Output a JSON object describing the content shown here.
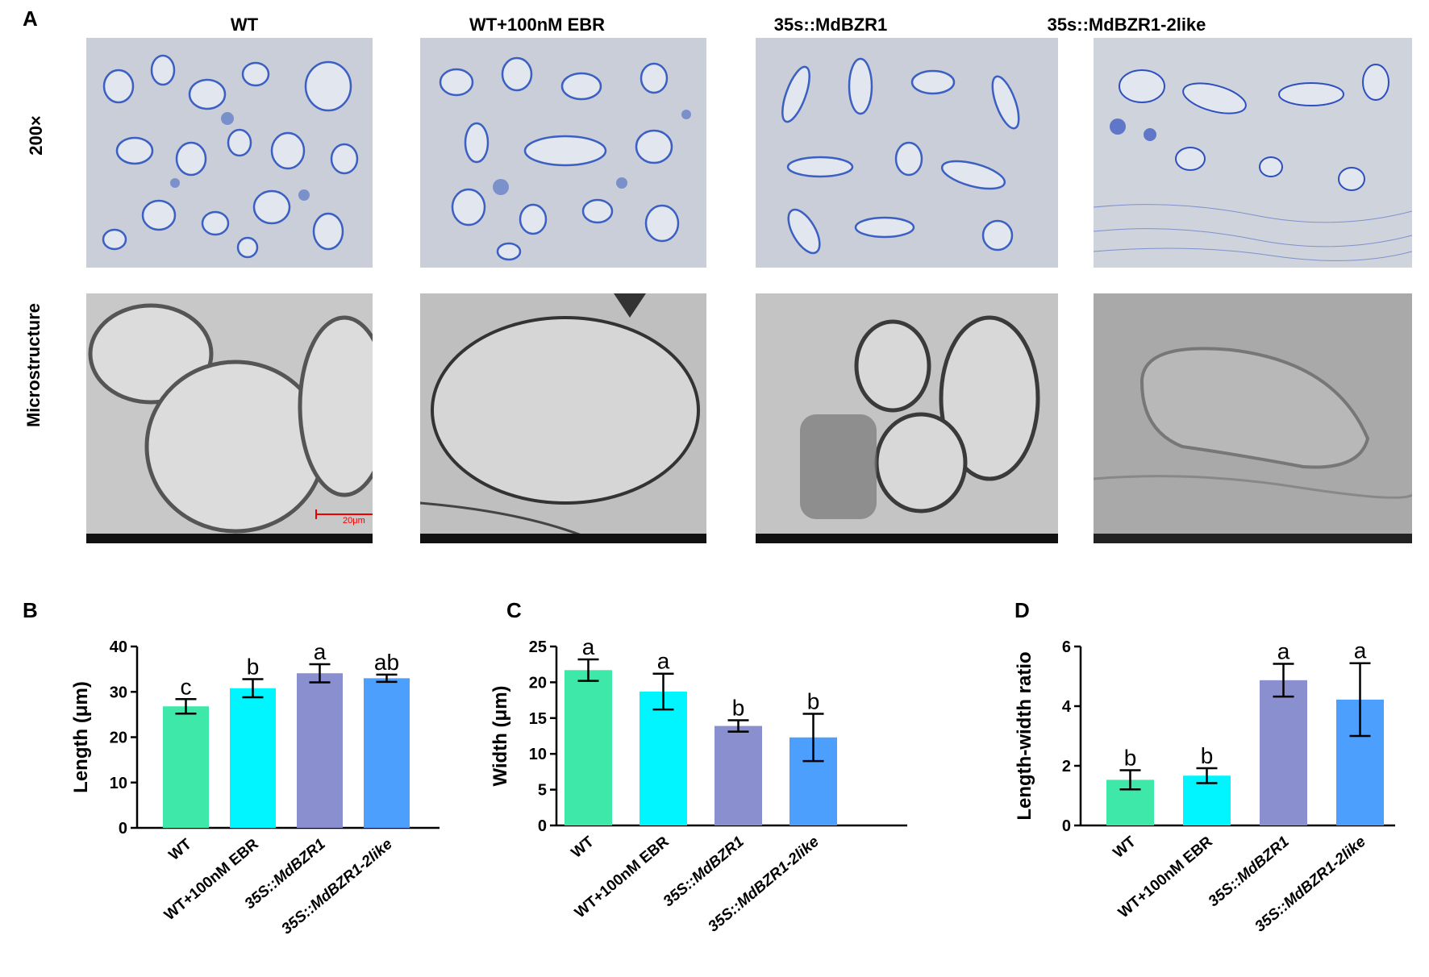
{
  "figure": {
    "panel_a": {
      "letter": "A",
      "columns": [
        "WT",
        "WT+100nM EBR",
        "35s::MdBZR1",
        "35s::MdBZR1-2like"
      ],
      "rows": [
        "200×",
        "Microstructure"
      ],
      "scale_bar_label": "20μm"
    },
    "panel_b": {
      "letter": "B"
    },
    "panel_c": {
      "letter": "C"
    },
    "panel_d": {
      "letter": "D"
    }
  },
  "colors": {
    "WT": "#3de8a8",
    "WT+100nM EBR": "#00f5ff",
    "35S::MdBZR1": "#8a8fcf",
    "35S::MdBZR1-2like": "#4d9ffd"
  },
  "chart_data": [
    {
      "type": "bar",
      "panel": "B",
      "categories": [
        "WT",
        "WT+100nM EBR",
        "35S::MdBZR1",
        "35S::MdBZR1-2like"
      ],
      "values": [
        26.8,
        30.8,
        34.1,
        33.0
      ],
      "errors": [
        1.6,
        2.0,
        2.0,
        0.8
      ],
      "significance": [
        "c",
        "b",
        "a",
        "ab"
      ],
      "ylabel": "Length (μm)",
      "ylim": [
        0,
        40
      ],
      "yticks": [
        0,
        10,
        20,
        30,
        40
      ]
    },
    {
      "type": "bar",
      "panel": "C",
      "categories": [
        "WT",
        "WT+100nM EBR",
        "35S::MdBZR1",
        "35S::MdBZR1-2like"
      ],
      "values": [
        21.7,
        18.7,
        13.9,
        12.3
      ],
      "errors": [
        1.5,
        2.5,
        0.8,
        3.3
      ],
      "significance": [
        "a",
        "a",
        "b",
        "b"
      ],
      "ylabel": "Width (μm)",
      "ylim": [
        0,
        25
      ],
      "yticks": [
        0,
        5,
        10,
        15,
        20,
        25
      ]
    },
    {
      "type": "bar",
      "panel": "D",
      "categories": [
        "WT",
        "WT+100nM EBR",
        "35S::MdBZR1",
        "35S::MdBZR1-2like"
      ],
      "values": [
        1.53,
        1.67,
        4.87,
        4.22
      ],
      "errors": [
        0.32,
        0.25,
        0.55,
        1.22
      ],
      "significance": [
        "b",
        "b",
        "a",
        "a"
      ],
      "ylabel": "Length-width ratio",
      "ylim": [
        0,
        6
      ],
      "yticks": [
        0,
        2,
        4,
        6
      ]
    }
  ]
}
